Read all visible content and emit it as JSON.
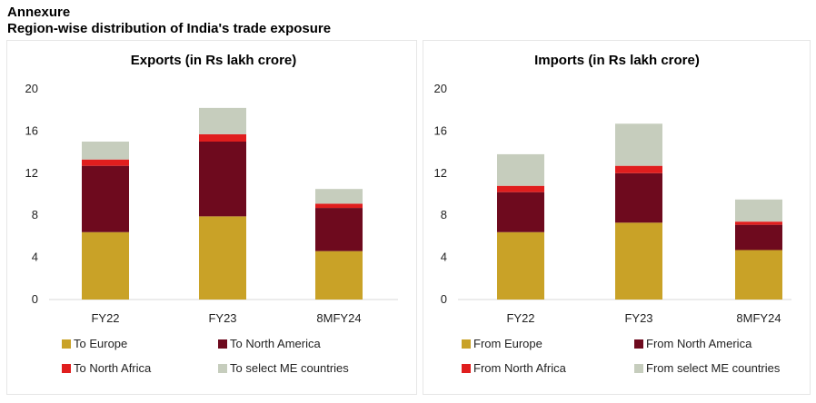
{
  "header": {
    "line1": "Annexure",
    "line2": "Region-wise distribution of India's trade exposure"
  },
  "chart_data": [
    {
      "type": "bar",
      "stacked": true,
      "title": "Exports (in Rs lakh crore)",
      "categories": [
        "FY22",
        "FY23",
        "8MFY24"
      ],
      "ylim": [
        0,
        20
      ],
      "yticks": [
        0,
        4,
        8,
        12,
        16,
        20
      ],
      "grid": false,
      "legend_position": "bottom",
      "series": [
        {
          "name": "To Europe",
          "color": "#C9A227",
          "values": [
            6.4,
            7.9,
            4.6
          ]
        },
        {
          "name": "To North America",
          "color": "#6E0A1E",
          "values": [
            6.3,
            7.1,
            4.1
          ]
        },
        {
          "name": "To North Africa",
          "color": "#E01E1E",
          "values": [
            0.6,
            0.7,
            0.4
          ]
        },
        {
          "name": "To select ME countries",
          "color": "#C6CDBD",
          "values": [
            1.7,
            2.5,
            1.4
          ]
        }
      ]
    },
    {
      "type": "bar",
      "stacked": true,
      "title": "Imports (in Rs lakh crore)",
      "categories": [
        "FY22",
        "FY23",
        "8MFY24"
      ],
      "ylim": [
        0,
        20
      ],
      "yticks": [
        0,
        4,
        8,
        12,
        16,
        20
      ],
      "grid": false,
      "legend_position": "bottom",
      "series": [
        {
          "name": "From Europe",
          "color": "#C9A227",
          "values": [
            6.4,
            7.3,
            4.7
          ]
        },
        {
          "name": "From North America",
          "color": "#6E0A1E",
          "values": [
            3.8,
            4.7,
            2.4
          ]
        },
        {
          "name": "From North Africa",
          "color": "#E01E1E",
          "values": [
            0.6,
            0.7,
            0.3
          ]
        },
        {
          "name": "From select ME countries",
          "color": "#C6CDBD",
          "values": [
            3.0,
            4.0,
            2.1
          ]
        }
      ]
    }
  ]
}
